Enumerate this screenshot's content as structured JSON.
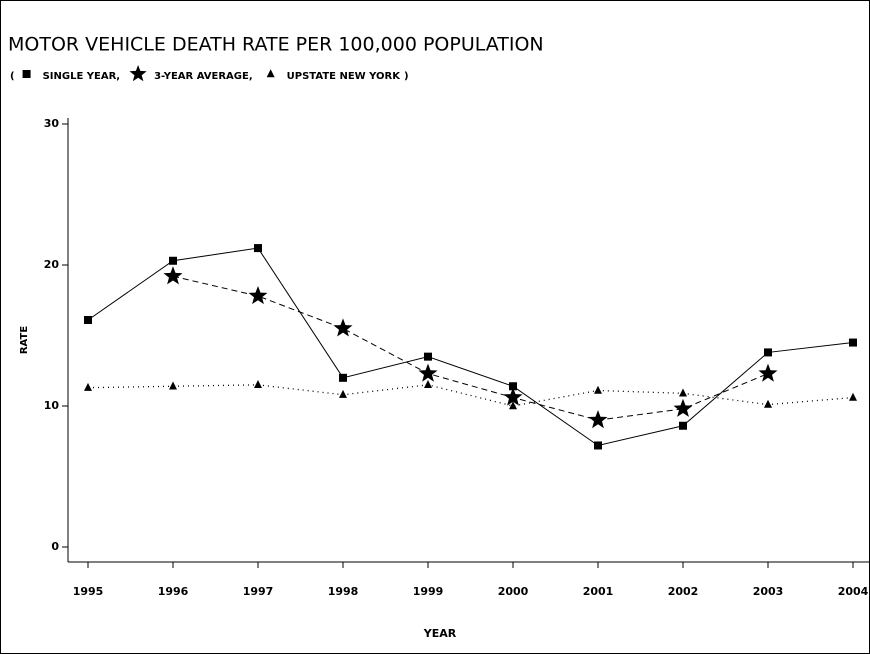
{
  "chart_data": {
    "type": "line",
    "title": "MOTOR VEHICLE DEATH RATE PER 100,000 POPULATION",
    "legend_brackets": [
      "(",
      ")"
    ],
    "legend_separator": ",",
    "x_label": "YEAR",
    "y_label": "RATE",
    "x": [
      1995,
      1996,
      1997,
      1998,
      1999,
      2000,
      2001,
      2002,
      2003,
      2004
    ],
    "series": [
      {
        "name": "SINGLE YEAR",
        "color": "#000000",
        "marker": "square",
        "dash": "solid",
        "values": [
          16.1,
          20.3,
          21.2,
          12.0,
          13.5,
          11.4,
          7.2,
          8.6,
          13.8,
          14.5
        ]
      },
      {
        "name": "3-YEAR AVERAGE",
        "color": "#000000",
        "marker": "star",
        "dash": "dashed",
        "values": [
          null,
          19.2,
          17.8,
          15.5,
          12.3,
          10.6,
          9.0,
          9.8,
          12.3,
          null
        ]
      },
      {
        "name": "UPSTATE NEW YORK",
        "color": "#000000",
        "marker": "triangle",
        "dash": "dotted",
        "values": [
          11.3,
          11.4,
          11.5,
          10.8,
          11.5,
          10.0,
          11.1,
          10.9,
          10.1,
          10.6
        ]
      }
    ],
    "xlim": [
      1995,
      2004
    ],
    "xticks": [
      1995,
      1996,
      1997,
      1998,
      1999,
      2000,
      2001,
      2002,
      2003,
      2004
    ],
    "ylim": [
      0,
      30
    ],
    "yticks": [
      0,
      10,
      20,
      30
    ],
    "grid": false
  }
}
